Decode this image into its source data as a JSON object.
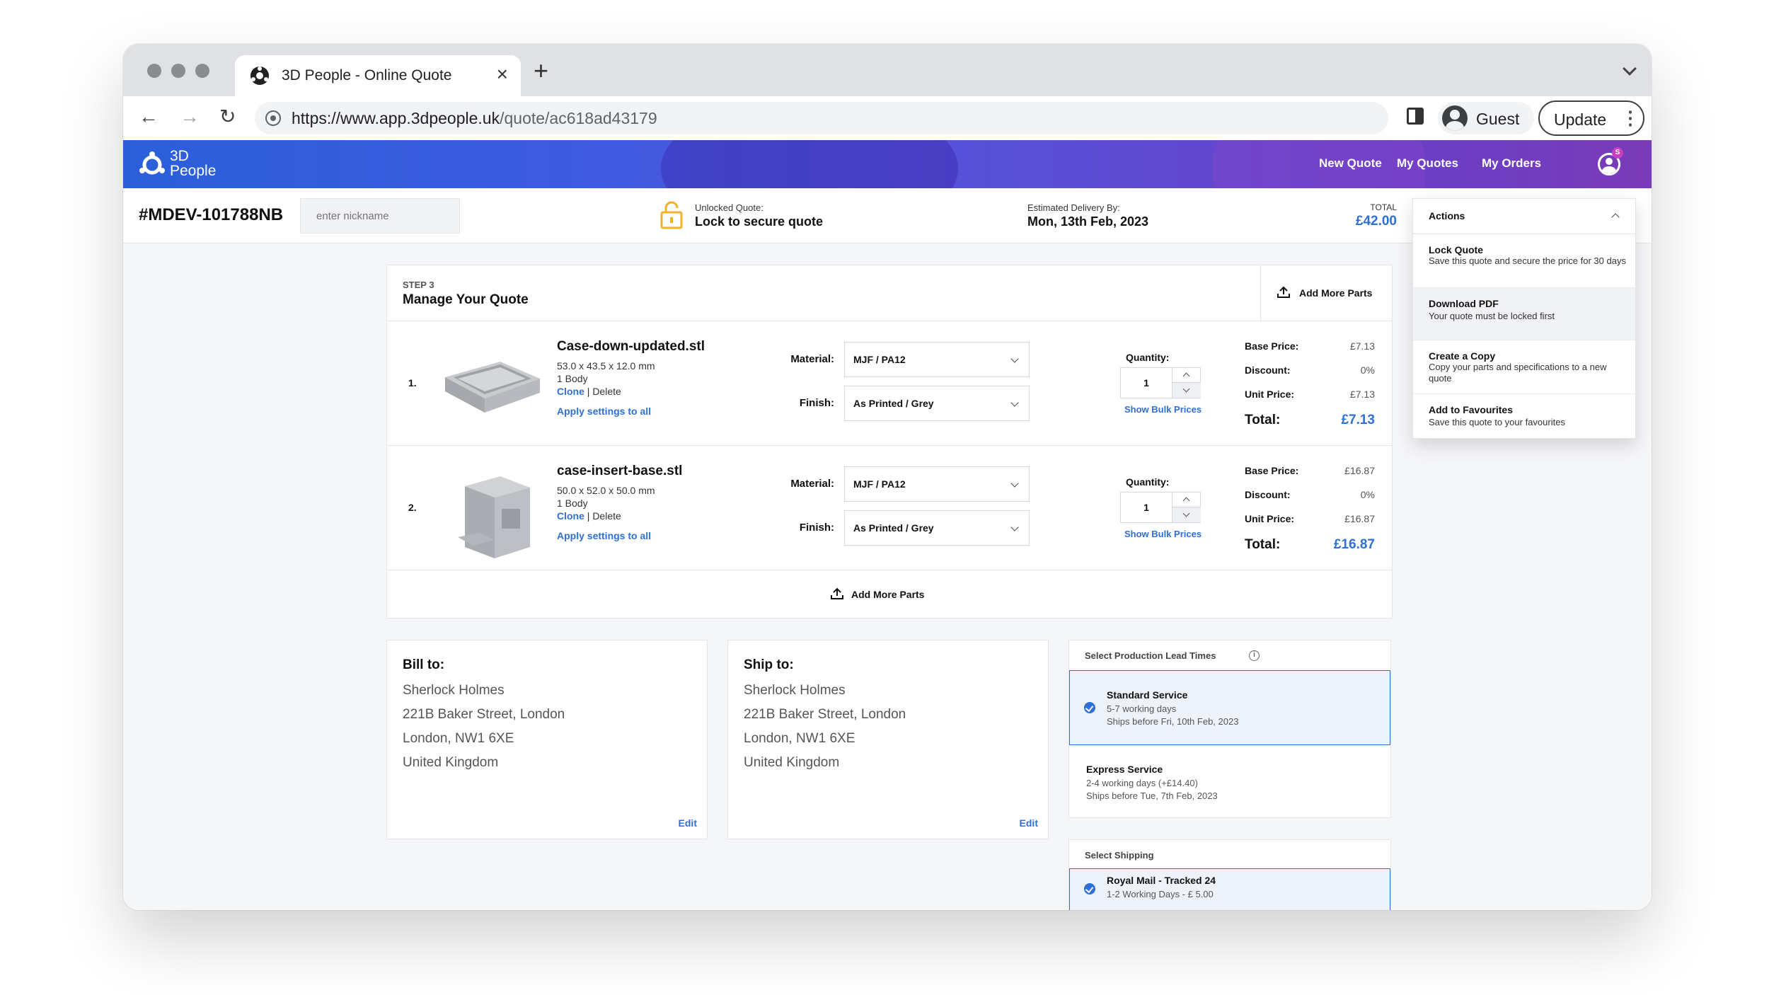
{
  "browser": {
    "tab_title": "3D People - Online Quote",
    "url_host": "https://www.app.3dpeople.uk",
    "url_path": "/quote/ac618ad43179",
    "profile_label": "Guest",
    "update_label": "Update"
  },
  "app": {
    "brand_line1": "3D",
    "brand_line2": "People",
    "nav": [
      "New Quote",
      "My Quotes",
      "My Orders"
    ],
    "account_badge": "S"
  },
  "quote_header": {
    "quote_id": "#MDEV-101788NB",
    "nickname_placeholder": "enter nickname",
    "lock_small": "Unlocked Quote:",
    "lock_main": "Lock to secure quote",
    "delivery_small": "Estimated Delivery By:",
    "delivery_main": "Mon, 13th Feb, 2023",
    "total_small": "TOTAL",
    "total_main": "£42.00"
  },
  "manage": {
    "step_label": "STEP 3",
    "title": "Manage Your Quote",
    "add_more_parts": "Add More Parts",
    "material_label": "Material:",
    "finish_label": "Finish:",
    "quantity_label": "Quantity:",
    "bulk_label": "Show Bulk Prices",
    "clone_label": "Clone",
    "delete_label": "Delete",
    "apply_label": "Apply settings to all",
    "base_label": "Base Price:",
    "discount_label": "Discount:",
    "unit_label": "Unit Price:",
    "total_label": "Total:",
    "parts": [
      {
        "num": "1.",
        "name": "Case-down-updated.stl",
        "dims": "53.0 x 43.5 x 12.0 mm",
        "bodies": "1 Body",
        "material": "MJF / PA12",
        "finish": "As Printed / Grey",
        "quantity": "1",
        "base": "£7.13",
        "discount": "0%",
        "unit": "£7.13",
        "total": "£7.13"
      },
      {
        "num": "2.",
        "name": "case-insert-base.stl",
        "dims": "50.0 x 52.0 x 50.0 mm",
        "bodies": "1 Body",
        "material": "MJF / PA12",
        "finish": "As Printed / Grey",
        "quantity": "1",
        "base": "£16.87",
        "discount": "0%",
        "unit": "£16.87",
        "total": "£16.87"
      }
    ]
  },
  "bill_to": {
    "title": "Bill to:",
    "lines": [
      "Sherlock Holmes",
      "221B Baker Street, London",
      "London, NW1 6XE",
      "United Kingdom"
    ],
    "edit": "Edit"
  },
  "ship_to": {
    "title": "Ship to:",
    "lines": [
      "Sherlock Holmes",
      "221B Baker Street, London",
      "London, NW1 6XE",
      "United Kingdom"
    ],
    "edit": "Edit"
  },
  "lead_times": {
    "heading": "Select Production Lead Times",
    "info_glyph": "i",
    "options": [
      {
        "title": "Standard Service",
        "sub1": "5-7 working days",
        "sub2": "Ships before Fri, 10th Feb, 2023",
        "selected": true
      },
      {
        "title": "Express Service",
        "sub1": "2-4 working days (+£14.40)",
        "sub2": "Ships before Tue, 7th Feb, 2023",
        "selected": false
      }
    ]
  },
  "shipping": {
    "heading": "Select Shipping",
    "option_title": "Royal Mail - Tracked 24",
    "option_sub": "1-2 Working Days - £ 5.00"
  },
  "actions": {
    "title": "Actions",
    "items": [
      {
        "title": "Lock Quote",
        "desc": "Save this quote and secure the price for 30 days"
      },
      {
        "title": "Download PDF",
        "desc": "Your quote must be locked first"
      },
      {
        "title": "Create a Copy",
        "desc": "Copy your parts and specifications to a new quote"
      },
      {
        "title": "Add to Favourites",
        "desc": "Save this quote to your favourites"
      }
    ]
  },
  "colors": {
    "accent_blue": "#2f6fd6",
    "header_gradient_start": "#2b5fd9",
    "header_gradient_end": "#7a3bb8",
    "lock_yellow": "#f0b323"
  }
}
